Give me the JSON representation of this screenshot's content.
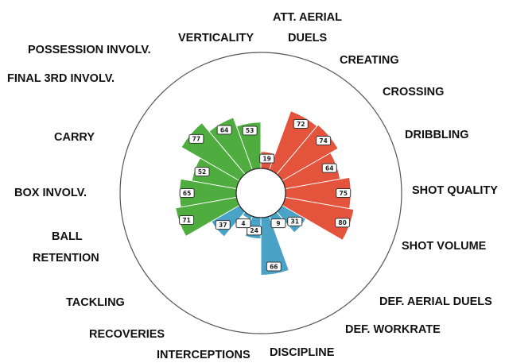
{
  "chart_data": {
    "type": "polar-bar",
    "rlim": [
      0,
      100
    ],
    "colors": {
      "red": "#e4533b",
      "blue": "#4aa3c6",
      "green": "#4fac3f"
    },
    "categories": [
      {
        "name": "ATT. AERIAL DUELS",
        "value": 19,
        "group": "red"
      },
      {
        "name": "CREATING",
        "value": 72,
        "group": "red"
      },
      {
        "name": "CROSSING",
        "value": 74,
        "group": "red"
      },
      {
        "name": "DRIBBLING",
        "value": 64,
        "group": "red"
      },
      {
        "name": "SHOT QUALITY",
        "value": 75,
        "group": "red"
      },
      {
        "name": "SHOT VOLUME",
        "value": 80,
        "group": "red"
      },
      {
        "name": "DEF. AERIAL DUELS",
        "value": 31,
        "group": "blue"
      },
      {
        "name": "DEF. WORKRATE",
        "value": 9,
        "group": "blue"
      },
      {
        "name": "DISCIPLINE",
        "value": 66,
        "group": "blue"
      },
      {
        "name": "INTERCEPTIONS",
        "value": 24,
        "group": "blue"
      },
      {
        "name": "RECOVERIES",
        "value": 4,
        "group": "blue"
      },
      {
        "name": "TACKLING",
        "value": 37,
        "group": "blue"
      },
      {
        "name": "BALL RETENTION",
        "value": 71,
        "group": "green"
      },
      {
        "name": "BOX INVOLV.",
        "value": 65,
        "group": "green"
      },
      {
        "name": "CARRY",
        "value": 52,
        "group": "green"
      },
      {
        "name": "FINAL 3RD INVOLV.",
        "value": 77,
        "group": "green"
      },
      {
        "name": "POSSESSION INVOLV.",
        "value": 64,
        "group": "green"
      },
      {
        "name": "VERTICALITY",
        "value": 53,
        "group": "green"
      }
    ]
  }
}
